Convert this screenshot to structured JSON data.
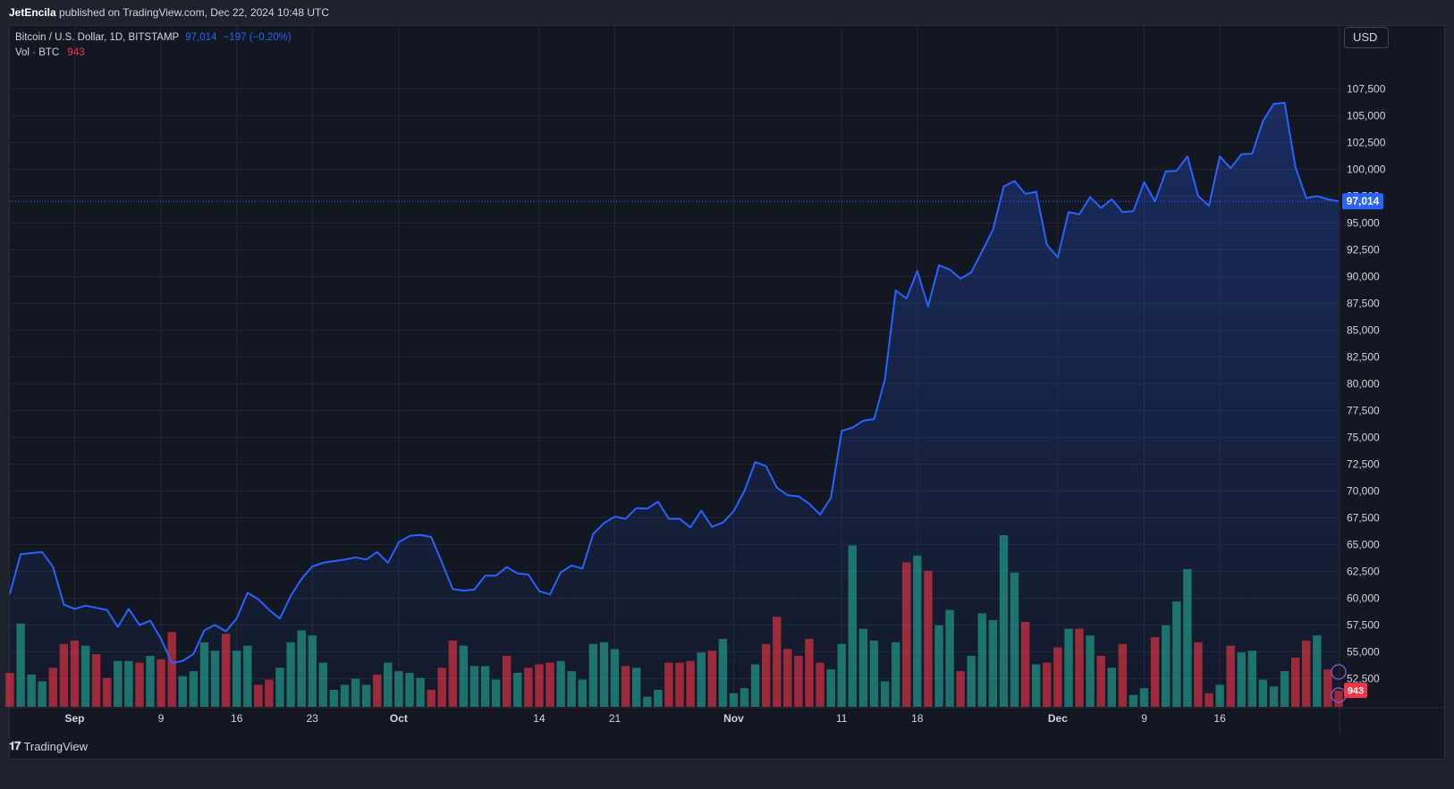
{
  "header": {
    "author": "JetEncila",
    "published_text": "published on TradingView.com, Dec 22, 2024 10:48 UTC"
  },
  "legend": {
    "symbol": "Bitcoin / U.S. Dollar, 1D, BITSTAMP",
    "last_value": "97,014",
    "change": "−197 (−0.20%)",
    "vol_label": "Vol · BTC",
    "vol_value": "943"
  },
  "price_scale": {
    "currency": "USD",
    "last_price_label": "97,014",
    "last_vol_label": "943"
  },
  "brand": {
    "name": "TradingView"
  },
  "colors": {
    "line": "#2962ff",
    "vol_up": "#22ab94",
    "vol_down": "#f23645",
    "background": "#131722"
  },
  "chart_data": {
    "type": "area",
    "title": "Bitcoin / U.S. Dollar, 1D, BITSTAMP",
    "x_start": "2024-08-26",
    "x_end": "2024-12-22",
    "ylim": [
      50000,
      110000
    ],
    "y_ticks": [
      "52,500",
      "55,000",
      "57,500",
      "60,000",
      "62,500",
      "65,000",
      "67,500",
      "70,000",
      "72,500",
      "75,000",
      "77,500",
      "80,000",
      "82,500",
      "85,000",
      "87,500",
      "90,000",
      "92,500",
      "95,000",
      "97,500",
      "100,000",
      "102,500",
      "105,000",
      "107,500"
    ],
    "x_ticks": [
      {
        "label": "Sep",
        "date": "2024-09-01",
        "bold": true
      },
      {
        "label": "9",
        "date": "2024-09-09",
        "bold": false
      },
      {
        "label": "16",
        "date": "2024-09-16",
        "bold": false
      },
      {
        "label": "23",
        "date": "2024-09-23",
        "bold": false
      },
      {
        "label": "Oct",
        "date": "2024-10-01",
        "bold": true
      },
      {
        "label": "14",
        "date": "2024-10-14",
        "bold": false
      },
      {
        "label": "21",
        "date": "2024-10-21",
        "bold": false
      },
      {
        "label": "Nov",
        "date": "2024-11-01",
        "bold": true
      },
      {
        "label": "11",
        "date": "2024-11-11",
        "bold": false
      },
      {
        "label": "18",
        "date": "2024-11-18",
        "bold": false
      },
      {
        "label": "Dec",
        "date": "2024-12-01",
        "bold": true
      },
      {
        "label": "9",
        "date": "2024-12-09",
        "bold": false
      },
      {
        "label": "16",
        "date": "2024-12-16",
        "bold": false
      }
    ],
    "grid": true,
    "series": [
      {
        "name": "Bitcoin / U.S. Dollar",
        "values": [
          60400,
          64100,
          64200,
          64300,
          62900,
          59400,
          59000,
          59300,
          59100,
          58900,
          57300,
          59000,
          57500,
          57900,
          56200,
          53950,
          54150,
          54800,
          57000,
          57500,
          56900,
          58100,
          60500,
          59900,
          58900,
          58100,
          60200,
          61800,
          62950,
          63300,
          63450,
          63600,
          63800,
          63600,
          64300,
          63300,
          65200,
          65800,
          65900,
          65700,
          63300,
          60850,
          60700,
          60800,
          62100,
          62100,
          62900,
          62300,
          62200,
          60650,
          60350,
          62400,
          63050,
          62750,
          66000,
          67000,
          67600,
          67400,
          68400,
          68350,
          69000,
          67400,
          67400,
          66600,
          68150,
          66650,
          67050,
          68100,
          70000,
          72700,
          72300,
          70300,
          69600,
          69500,
          68800,
          67800,
          69350,
          75600,
          75900,
          76550,
          76700,
          80400,
          88700,
          87950,
          90500,
          87200,
          91050,
          90650,
          89800,
          90400,
          92350,
          94350,
          98400,
          98900,
          97700,
          97900,
          92950,
          91800,
          96000,
          95800,
          97400,
          96400,
          97200,
          96000,
          96100,
          98800,
          97000,
          99800,
          99850,
          101200,
          97500,
          96600,
          101200,
          100100,
          101400,
          101450,
          104500,
          106100,
          106200,
          100200,
          97300,
          97500,
          97200,
          97014
        ]
      },
      {
        "name": "Vol · BTC",
        "values": [
          2000,
          4900,
          1900,
          1500,
          2300,
          3700,
          3900,
          3600,
          3100,
          1700,
          2700,
          2700,
          2600,
          3000,
          2800,
          4400,
          1800,
          2100,
          3800,
          3300,
          4300,
          3300,
          3600,
          1300,
          1600,
          2300,
          3800,
          4500,
          4200,
          2600,
          1000,
          1300,
          1650,
          1300,
          1900,
          2600,
          2100,
          2000,
          1700,
          1000,
          2300,
          3900,
          3600,
          2400,
          2400,
          1600,
          3000,
          2000,
          2300,
          2500,
          2600,
          2700,
          2100,
          1600,
          3700,
          3800,
          3400,
          2400,
          2300,
          600,
          1000,
          2600,
          2600,
          2700,
          3200,
          3300,
          4000,
          800,
          1100,
          2500,
          3700,
          5300,
          3400,
          3000,
          4000,
          2600,
          2200,
          3700,
          9500,
          4600,
          3900,
          1500,
          3800,
          8500,
          8900,
          8000,
          4800,
          5700,
          2100,
          3000,
          5500,
          5100,
          10100,
          7900,
          5000,
          2500,
          2600,
          3500,
          4600,
          4600,
          4200,
          3000,
          2300,
          3700,
          700,
          1100,
          4100,
          4800,
          6200,
          8100,
          3800,
          800,
          1300,
          3600,
          3200,
          3300,
          1600,
          1200,
          2100,
          2900,
          3900,
          4200,
          2200,
          943
        ],
        "up": [
          0,
          1,
          1,
          1,
          0,
          0,
          0,
          1,
          0,
          0,
          1,
          1,
          0,
          1,
          0,
          0,
          1,
          1,
          1,
          1,
          0,
          1,
          1,
          0,
          0,
          1,
          1,
          1,
          1,
          1,
          1,
          1,
          1,
          1,
          0,
          1,
          1,
          1,
          1,
          0,
          0,
          0,
          1,
          1,
          1,
          1,
          0,
          1,
          0,
          0,
          0,
          1,
          1,
          1,
          1,
          1,
          1,
          0,
          1,
          1,
          1,
          0,
          0,
          0,
          1,
          0,
          1,
          1,
          1,
          1,
          0,
          0,
          0,
          0,
          0,
          0,
          1,
          1,
          1,
          1,
          1,
          1,
          1,
          0,
          1,
          0,
          1,
          1,
          0,
          1,
          1,
          1,
          1,
          1,
          0,
          1,
          0,
          0,
          1,
          0,
          1,
          0,
          1,
          0,
          1,
          1,
          0,
          1,
          1,
          1,
          0,
          0,
          1,
          0,
          1,
          1,
          1,
          1,
          1,
          0,
          0,
          1,
          0,
          0
        ]
      }
    ]
  }
}
